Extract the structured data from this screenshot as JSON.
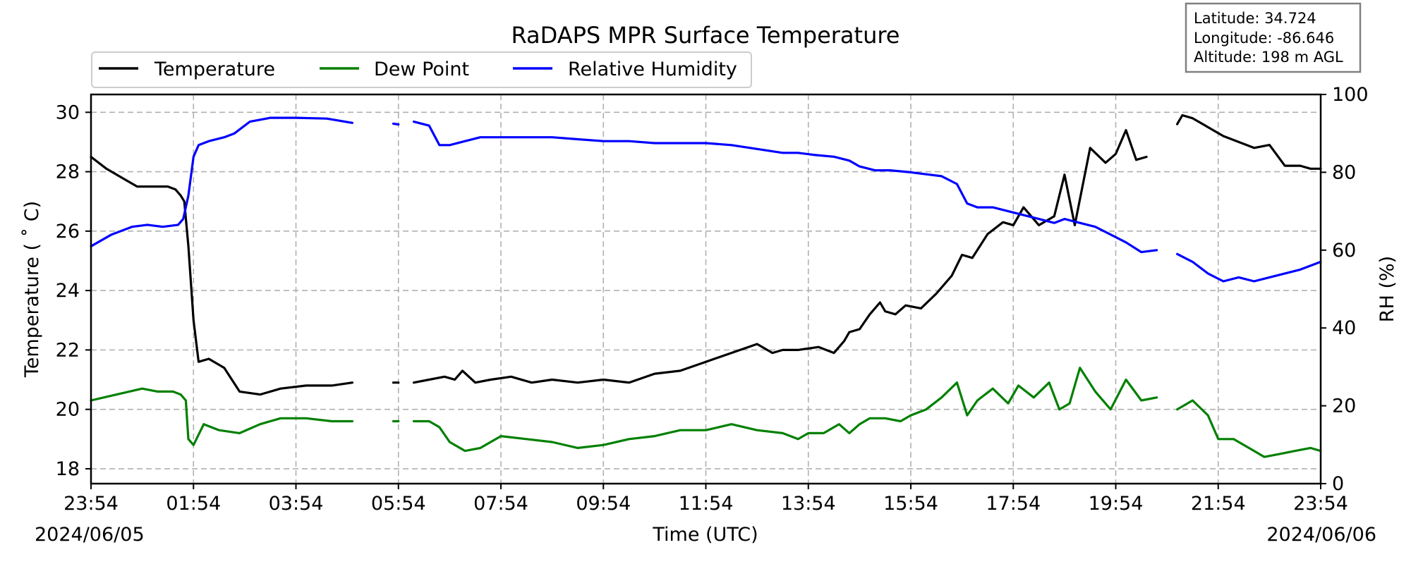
{
  "chart_data": {
    "type": "line",
    "title": "RaDAPS MPR Surface Temperature",
    "xlabel": "Time (UTC)",
    "ylabel": "Temperature ($^\\circ$C)",
    "ylabel_display": "Temperature ( ˚ C)",
    "y2label": "RH (%)",
    "ylim": [
      17.5,
      30.6
    ],
    "y2lim": [
      0,
      100
    ],
    "y_ticks": [
      "18",
      "20",
      "22",
      "24",
      "26",
      "28",
      "30"
    ],
    "y2_ticks": [
      "0",
      "20",
      "40",
      "60",
      "80",
      "100"
    ],
    "x_tick_labels": [
      "23:54",
      "01:54",
      "03:54",
      "05:54",
      "07:54",
      "09:54",
      "11:54",
      "13:54",
      "15:54",
      "17:54",
      "19:54",
      "21:54",
      "23:54"
    ],
    "date_start": "2024/06/05",
    "date_end": "2024/06/06",
    "grid": true,
    "legend_position": "top-left",
    "info_box": {
      "latitude": "Latitude: 34.724",
      "longitude": "Longitude: -86.646",
      "altitude": "Altitude: 198 m AGL"
    },
    "series": [
      {
        "name": "Temperature",
        "axis": "left",
        "color": "#000000",
        "x_hours": [
          0,
          0.3,
          0.6,
          0.9,
          1.2,
          1.5,
          1.65,
          1.75,
          1.82,
          1.9,
          2.0,
          2.1,
          2.3,
          2.6,
          2.9,
          3.3,
          3.7,
          4.2,
          4.7,
          5.1,
          null,
          5.9,
          6.0,
          null,
          6.3,
          6.6,
          6.9,
          7.1,
          7.25,
          7.5,
          7.8,
          8.2,
          8.6,
          9.0,
          9.5,
          10.0,
          10.5,
          11.0,
          11.5,
          12.0,
          12.5,
          13.0,
          13.3,
          13.5,
          13.8,
          14.2,
          14.5,
          14.7,
          14.8,
          15.0,
          15.2,
          15.4,
          15.5,
          15.7,
          15.9,
          16.2,
          16.5,
          16.8,
          17.0,
          17.2,
          17.5,
          17.8,
          18.0,
          18.2,
          18.5,
          18.8,
          19.0,
          19.2,
          19.5,
          19.8,
          20.0,
          20.2,
          20.4,
          20.6,
          20.7,
          20.8,
          null,
          21.2,
          21.3,
          21.5,
          21.7,
          21.9,
          22.1,
          22.4,
          22.7,
          23.0,
          23.3,
          23.6,
          23.8,
          24.0
        ],
        "values": [
          28.5,
          28.1,
          27.8,
          27.5,
          27.5,
          27.5,
          27.4,
          27.2,
          27.0,
          25.5,
          23.0,
          21.6,
          21.7,
          21.4,
          20.6,
          20.5,
          20.7,
          20.8,
          20.8,
          20.9,
          null,
          20.9,
          20.9,
          null,
          20.9,
          21.0,
          21.1,
          21.0,
          21.3,
          20.9,
          21.0,
          21.1,
          20.9,
          21.0,
          20.9,
          21.0,
          20.9,
          21.2,
          21.3,
          21.6,
          21.9,
          22.2,
          21.9,
          22.0,
          22.0,
          22.1,
          21.9,
          22.3,
          22.6,
          22.7,
          23.2,
          23.6,
          23.3,
          23.2,
          23.5,
          23.4,
          23.9,
          24.5,
          25.2,
          25.1,
          25.9,
          26.3,
          26.2,
          26.8,
          26.2,
          26.5,
          27.9,
          26.2,
          28.8,
          28.3,
          28.6,
          29.4,
          28.4,
          28.5,
          null,
          29.0,
          29.3,
          29.6,
          29.9,
          29.8,
          29.6,
          29.4,
          29.2,
          29.0,
          28.8,
          28.9,
          28.2,
          28.2,
          28.1,
          28.1
        ],
        "note": "values in °C"
      },
      {
        "name": "Dew Point",
        "axis": "left",
        "color": "#008000",
        "x_hours": [
          0,
          0.5,
          1.0,
          1.3,
          1.6,
          1.75,
          1.85,
          1.9,
          2.0,
          2.2,
          2.5,
          2.9,
          3.3,
          3.7,
          4.2,
          4.7,
          5.1,
          null,
          5.9,
          6.0,
          null,
          6.3,
          6.6,
          6.8,
          7.0,
          7.3,
          7.6,
          8.0,
          8.5,
          9.0,
          9.5,
          10.0,
          10.5,
          11.0,
          11.5,
          12.0,
          12.5,
          13.0,
          13.5,
          13.8,
          14.0,
          14.3,
          14.6,
          14.8,
          15.0,
          15.2,
          15.5,
          15.8,
          16.0,
          16.3,
          16.6,
          16.9,
          17.1,
          17.3,
          17.6,
          17.9,
          18.1,
          18.4,
          18.7,
          18.9,
          19.1,
          19.3,
          19.6,
          19.9,
          20.2,
          20.5,
          20.8,
          null,
          21.2,
          21.5,
          21.8,
          22.0,
          22.3,
          22.6,
          22.9,
          23.2,
          23.5,
          23.8,
          24.0
        ],
        "values": [
          20.3,
          20.5,
          20.7,
          20.6,
          20.6,
          20.5,
          20.3,
          19.0,
          18.8,
          19.5,
          19.3,
          19.2,
          19.5,
          19.7,
          19.7,
          19.6,
          19.6,
          null,
          19.6,
          19.6,
          null,
          19.6,
          19.6,
          19.4,
          18.9,
          18.6,
          18.7,
          19.1,
          19.0,
          18.9,
          18.7,
          18.8,
          19.0,
          19.1,
          19.3,
          19.3,
          19.5,
          19.3,
          19.2,
          19.0,
          19.2,
          19.2,
          19.5,
          19.2,
          19.5,
          19.7,
          19.7,
          19.6,
          19.8,
          20.0,
          20.4,
          20.9,
          19.8,
          20.3,
          20.7,
          20.2,
          20.8,
          20.4,
          20.9,
          20.0,
          20.2,
          21.4,
          20.6,
          20.0,
          21.0,
          20.3,
          20.4,
          null,
          20.0,
          20.3,
          19.8,
          19.0,
          19.0,
          18.7,
          18.4,
          18.5,
          18.6,
          18.7,
          18.6
        ],
        "note": "values in °C"
      },
      {
        "name": "Relative Humidity",
        "axis": "right",
        "color": "#0000ff",
        "x_hours": [
          0,
          0.4,
          0.8,
          1.1,
          1.4,
          1.7,
          1.8,
          1.9,
          2.0,
          2.1,
          2.3,
          2.6,
          2.8,
          3.1,
          3.5,
          4.0,
          4.6,
          5.1,
          null,
          5.9,
          6.0,
          null,
          6.3,
          6.6,
          6.8,
          7.0,
          7.3,
          7.6,
          8.0,
          8.5,
          9.0,
          9.5,
          10.0,
          10.5,
          11.0,
          11.5,
          12.0,
          12.5,
          13.0,
          13.5,
          13.8,
          14.1,
          14.5,
          14.8,
          15.0,
          15.3,
          15.6,
          16.0,
          16.3,
          16.6,
          16.9,
          17.1,
          17.3,
          17.6,
          17.9,
          18.2,
          18.5,
          18.8,
          19.0,
          19.3,
          19.6,
          19.9,
          20.2,
          20.5,
          20.8,
          null,
          21.2,
          21.5,
          21.8,
          22.1,
          22.4,
          22.7,
          23.0,
          23.3,
          23.6,
          24.0
        ],
        "values": [
          61,
          64,
          66,
          66.5,
          66,
          66.5,
          68,
          74,
          84,
          87,
          88,
          89,
          90,
          93,
          94,
          94,
          93.8,
          92.7,
          null,
          92.5,
          92.3,
          null,
          93,
          92,
          87,
          87,
          88,
          89,
          89,
          89,
          89,
          88.5,
          88,
          88,
          87.5,
          87.5,
          87.5,
          87,
          86,
          85,
          85,
          84.5,
          84,
          83,
          81.5,
          80.5,
          80.5,
          80,
          79.5,
          79,
          77,
          72,
          71,
          71,
          70,
          69,
          68,
          67,
          68,
          67,
          66,
          64,
          62,
          59.5,
          60,
          null,
          59,
          57,
          54,
          52,
          53,
          52,
          53,
          54,
          55,
          57
        ],
        "note": "values in %"
      }
    ]
  }
}
